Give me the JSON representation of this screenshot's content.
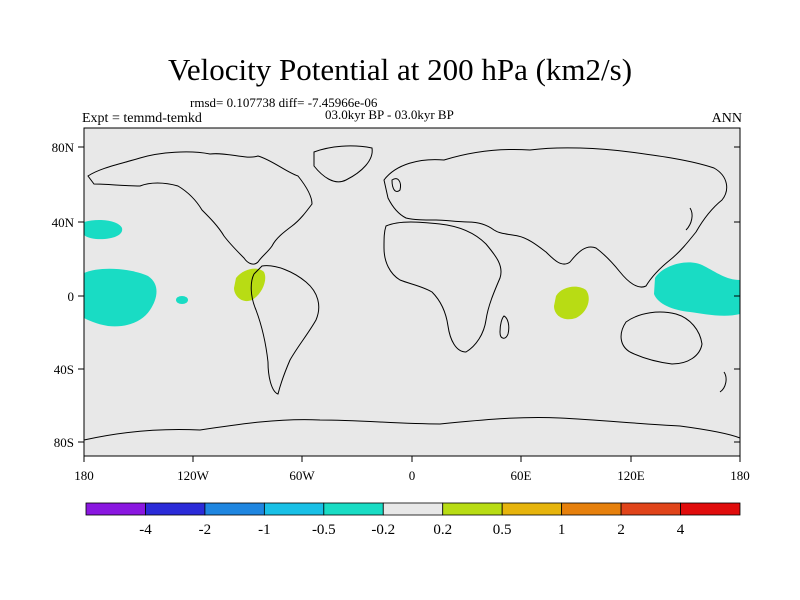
{
  "title": "Velocity Potential at 200 hPa (km2/s)",
  "stats": "rmsd= 0.107738 diff= -7.45966e-06",
  "period": "03.0kyr BP - 03.0kyr BP",
  "experiment": "Expt = temmd-temkd",
  "season": "ANN",
  "lat_labels": [
    "80N",
    "40N",
    "0",
    "40S",
    "80S"
  ],
  "lon_labels": [
    "180",
    "120W",
    "60W",
    "0",
    "60E",
    "120E",
    "180"
  ],
  "colorbar": {
    "labels": [
      "-4",
      "-2",
      "-1",
      "-0.5",
      "-0.2",
      "0.2",
      "0.5",
      "1",
      "2",
      "4"
    ],
    "colors": [
      "#8a17e0",
      "#2b2bd8",
      "#1f86e0",
      "#19c0e6",
      "#19dcc4",
      "#e8e8e8",
      "#b8dc14",
      "#e6b40c",
      "#e6800c",
      "#e0441a",
      "#e00c0c"
    ]
  },
  "colors": {
    "ocean_land_bg": "#e8e8e8",
    "negative_contour": "#19dcc4",
    "positive_contour": "#b8dc14"
  }
}
